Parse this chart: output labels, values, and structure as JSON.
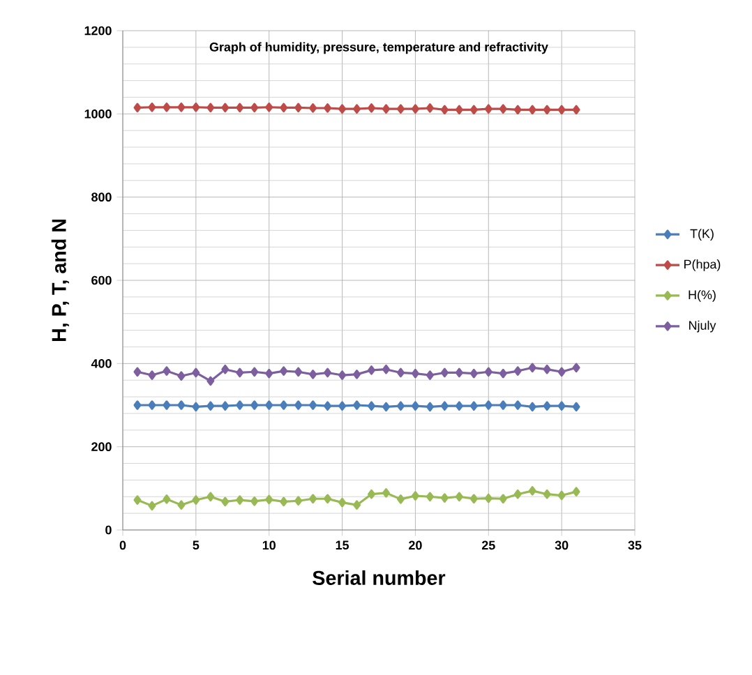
{
  "chart_data": {
    "type": "line",
    "title": "Graph of humidity, pressure, temperature and refractivity",
    "xlabel": "Serial number",
    "ylabel": "H, P, T, and N",
    "x": [
      1,
      2,
      3,
      4,
      5,
      6,
      7,
      8,
      9,
      10,
      11,
      12,
      13,
      14,
      15,
      16,
      17,
      18,
      19,
      20,
      21,
      22,
      23,
      24,
      25,
      26,
      27,
      28,
      29,
      30,
      31
    ],
    "series": [
      {
        "name": "T(K)",
        "color": "#4a7ebb",
        "values": [
          300,
          300,
          300,
          300,
          296,
          298,
          298,
          300,
          300,
          300,
          300,
          300,
          300,
          298,
          298,
          300,
          298,
          296,
          298,
          298,
          296,
          298,
          298,
          298,
          300,
          300,
          300,
          296,
          298,
          298,
          296
        ]
      },
      {
        "name": "P(hpa)",
        "color": "#be4b48",
        "values": [
          1015,
          1016,
          1016,
          1016,
          1016,
          1015,
          1015,
          1015,
          1015,
          1016,
          1015,
          1015,
          1014,
          1014,
          1012,
          1012,
          1014,
          1012,
          1012,
          1012,
          1014,
          1010,
          1010,
          1010,
          1012,
          1012,
          1010,
          1010,
          1010,
          1010,
          1010
        ]
      },
      {
        "name": "H(%)",
        "color": "#98b954",
        "values": [
          72,
          58,
          74,
          60,
          72,
          80,
          68,
          72,
          69,
          73,
          68,
          70,
          75,
          75,
          66,
          60,
          86,
          89,
          74,
          82,
          80,
          77,
          80,
          75,
          76,
          75,
          86,
          94,
          86,
          83,
          92
        ]
      },
      {
        "name": "Njuly",
        "color": "#7d5fa0",
        "values": [
          380,
          372,
          382,
          370,
          378,
          358,
          386,
          378,
          380,
          376,
          382,
          380,
          374,
          378,
          372,
          374,
          384,
          386,
          378,
          376,
          372,
          378,
          378,
          376,
          380,
          376,
          382,
          390,
          386,
          380,
          390
        ]
      }
    ],
    "xlim": [
      0,
      35
    ],
    "ylim": [
      0,
      1200
    ],
    "xticks": [
      0,
      5,
      10,
      15,
      20,
      25,
      30,
      35
    ],
    "yticks": [
      0,
      200,
      400,
      600,
      800,
      1000,
      1200
    ],
    "grid": true,
    "legend": "right",
    "marker": "diamond",
    "line_style": "solid"
  }
}
